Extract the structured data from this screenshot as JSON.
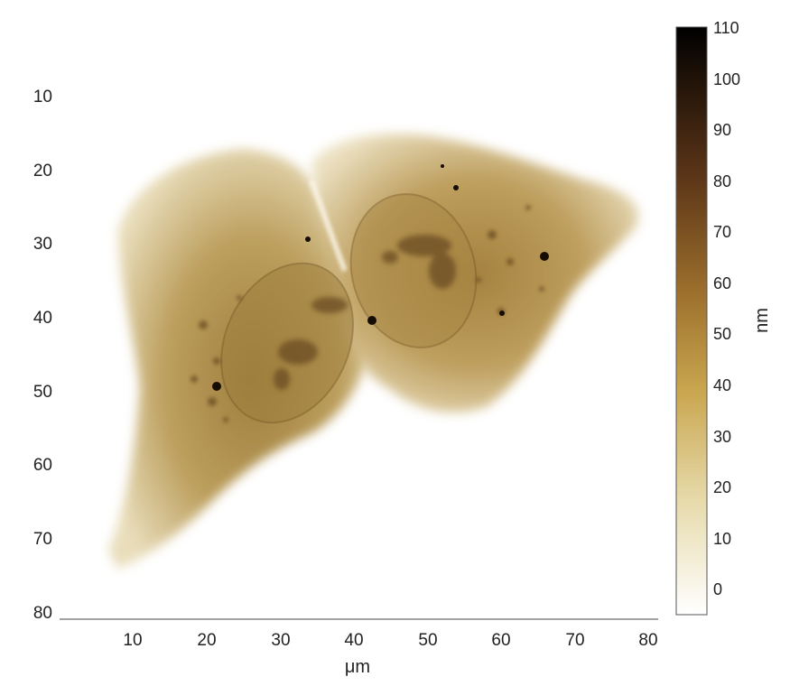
{
  "figure": {
    "x_axis": {
      "label": "μm",
      "ticks": [
        "10",
        "20",
        "30",
        "40",
        "50",
        "60",
        "70",
        "80"
      ],
      "range": [
        0,
        81
      ]
    },
    "y_axis": {
      "ticks": [
        "10",
        "20",
        "30",
        "40",
        "50",
        "60",
        "70",
        "80"
      ],
      "range": [
        0,
        81
      ],
      "direction": "top-to-bottom"
    },
    "colorbar": {
      "label": "nm",
      "ticks": [
        "110",
        "100",
        "90",
        "80",
        "70",
        "60",
        "50",
        "40",
        "30",
        "20",
        "10",
        "0"
      ],
      "range": [
        -5,
        115
      ],
      "colormap": [
        "#ffffff",
        "#e6d9a8",
        "#c9a64f",
        "#9c6f2c",
        "#5a3417",
        "#000000"
      ]
    },
    "image_subject": "two-adjacent-cells-afm-height-map"
  }
}
